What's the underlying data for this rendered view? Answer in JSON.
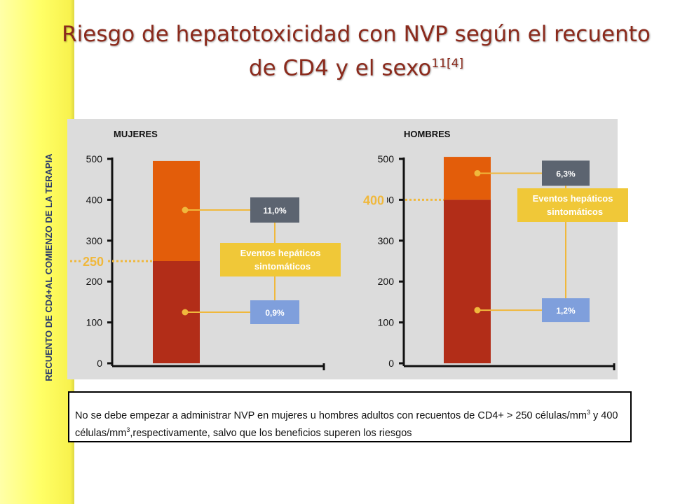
{
  "slide": {
    "title_main": "Riesgo de hepatotoxicidad con NVP según el recuento de CD4 y el sexo",
    "title_ref": "11[4]",
    "ylabel": "RECUENTO DE CD4+AL COMIENZO DE LA TERAPIA",
    "note_part1": "No se debe empezar a administrar NVP en mujeres u hombres adultos con recuentos de CD4+ > 250 células/mm",
    "note_sup1": "3",
    "note_part2": " y 400 células/mm",
    "note_sup2": "3",
    "note_part3": ",respectivamente, salvo que los beneficios superen los riesgos"
  },
  "colors": {
    "bar_low": "#b22d18",
    "bar_high": "#e35d0a",
    "label_high": "#5c6470",
    "label_low": "#7f9fdc",
    "callout": "#f0c838",
    "line": "#f0b83c",
    "threshold_text": "#f0b83c",
    "title": "#8b2a1c"
  },
  "chart_data": [
    {
      "type": "bar",
      "title": "MUJERES",
      "ylim": [
        0,
        500
      ],
      "yticks": [
        0,
        100,
        200,
        300,
        400,
        500
      ],
      "threshold": 250,
      "threshold_label": "250",
      "bar_segments": [
        {
          "from": 0,
          "to": 250,
          "color_key": "bar_low"
        },
        {
          "from": 250,
          "to": 495,
          "color_key": "bar_high"
        }
      ],
      "upper_label": "11,0%",
      "upper_level": 375,
      "lower_label": "0,9%",
      "lower_level": 125,
      "callout": [
        "Eventos hepáticos",
        "sintomáticos"
      ]
    },
    {
      "type": "bar",
      "title": "HOMBRES",
      "ylim": [
        0,
        500
      ],
      "yticks": [
        0,
        100,
        200,
        300,
        400,
        500
      ],
      "threshold": 400,
      "threshold_label": "400",
      "bar_segments": [
        {
          "from": 0,
          "to": 400,
          "color_key": "bar_low"
        },
        {
          "from": 400,
          "to": 505,
          "color_key": "bar_high"
        }
      ],
      "upper_label": "6,3%",
      "upper_level": 465,
      "lower_label": "1,2%",
      "lower_level": 130,
      "callout": [
        "Eventos hepáticos",
        "sintomáticos"
      ]
    }
  ]
}
